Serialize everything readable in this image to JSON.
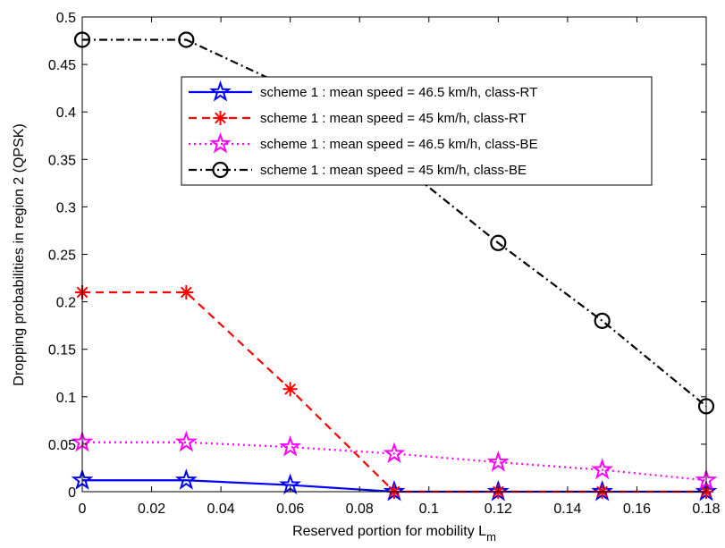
{
  "chart_data": {
    "type": "line",
    "title": "",
    "xlabel": "Reserved portion for mobility L",
    "xlabel_subscript": "m",
    "ylabel": "Dropping probabilities in region 2 (QPSK)",
    "xlim": [
      0,
      0.18
    ],
    "ylim": [
      0,
      0.5
    ],
    "xticks": [
      0,
      0.02,
      0.04,
      0.06,
      0.08,
      0.1,
      0.12,
      0.14,
      0.16,
      0.18
    ],
    "xtick_labels": [
      "0",
      "0.02",
      "0.04",
      "0.06",
      "0.08",
      "0.1",
      "0.12",
      "0.14",
      "0.16",
      "0.18"
    ],
    "yticks": [
      0,
      0.05,
      0.1,
      0.15,
      0.2,
      0.25,
      0.3,
      0.35,
      0.4,
      0.45,
      0.5
    ],
    "ytick_labels": [
      "0",
      "0.05",
      "0.1",
      "0.15",
      "0.2",
      "0.25",
      "0.3",
      "0.35",
      "0.4",
      "0.45",
      "0.5"
    ],
    "grid": false,
    "legend_position": "top-right",
    "x": [
      0,
      0.03,
      0.06,
      0.09,
      0.12,
      0.15,
      0.18
    ],
    "series": [
      {
        "name": "scheme 1 : mean speed = 46.5 km/h, class-RT",
        "color": "#0000ff",
        "line_style": "solid",
        "marker": "pentagram",
        "values": [
          0.012,
          0.012,
          0.007,
          0.0,
          0.0,
          0.0,
          0.0
        ]
      },
      {
        "name": "scheme 1 : mean speed = 45 km/h, class-RT",
        "color": "#ff0000",
        "line_style": "dashed",
        "marker": "asterisk",
        "values": [
          0.21,
          0.21,
          0.108,
          0.0,
          0.0,
          0.0,
          0.0
        ]
      },
      {
        "name": "scheme 1 : mean speed = 46.5 km/h, class-BE",
        "color": "#ff00ff",
        "line_style": "dotted",
        "marker": "pentagram",
        "values": [
          0.052,
          0.052,
          0.047,
          0.04,
          0.031,
          0.023,
          0.012
        ]
      },
      {
        "name": "scheme 1 : mean speed = 45 km/h, class-BE",
        "color": "#000000",
        "line_style": "dash-dot",
        "marker": "circle",
        "values": [
          0.476,
          0.476,
          0.425,
          0.35,
          0.262,
          0.18,
          0.09
        ]
      }
    ]
  }
}
